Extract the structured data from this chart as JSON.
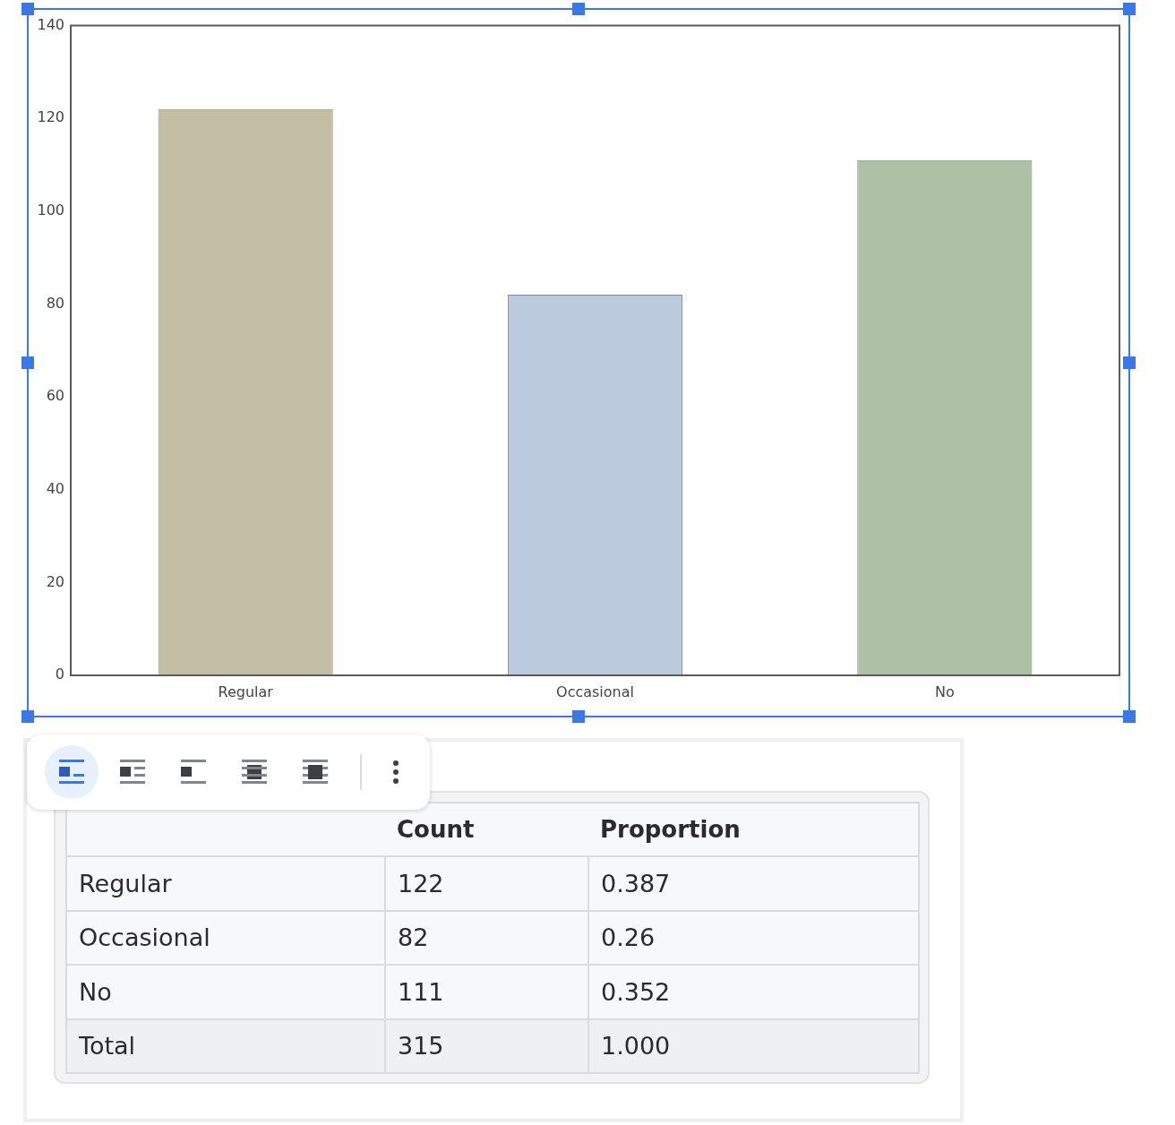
{
  "chart_data": {
    "type": "bar",
    "categories": [
      "Regular",
      "Occasional",
      "No"
    ],
    "values": [
      122,
      82,
      111
    ],
    "colors": [
      "#c2bda3",
      "#bbcbdd",
      "#adc1a7"
    ],
    "ylim": [
      0,
      140
    ],
    "yticks": [
      0,
      20,
      40,
      60,
      80,
      100,
      120,
      140
    ],
    "grid": false,
    "legend": false,
    "annotations": [
      "Count",
      "Proportion",
      "122",
      "0.387",
      "82",
      "0.26",
      "111",
      "0.352",
      "Total",
      "315",
      "1.000"
    ]
  }
}
